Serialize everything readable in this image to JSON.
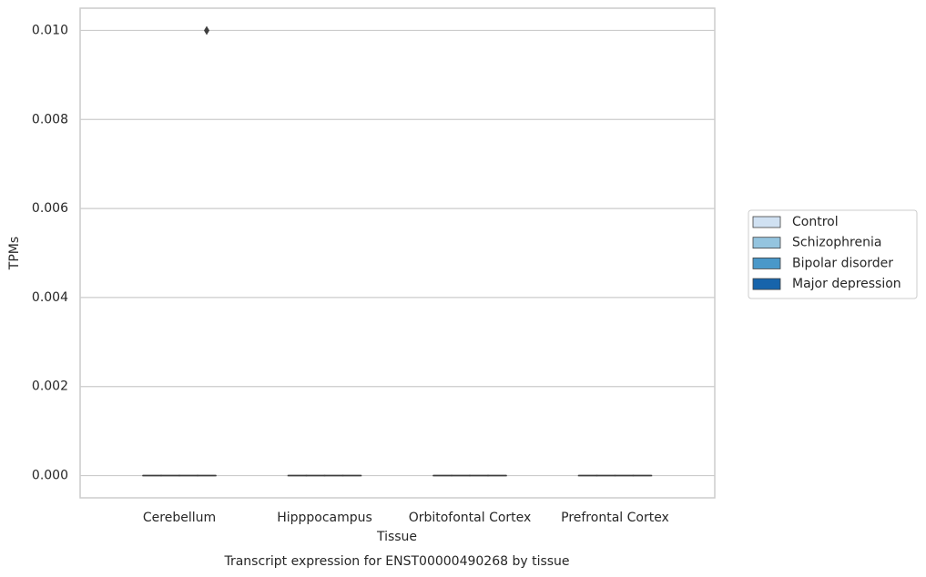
{
  "chart_data": {
    "type": "box",
    "title": "Transcript expression for ENST00000490268 by tissue",
    "x_label": "Tissue",
    "y_label": "TPMs",
    "categories": [
      "Cerebellum",
      "Hipppocampus",
      "Orbitofontal Cortex",
      "Prefrontal Cortex"
    ],
    "ylim": [
      -0.0005,
      0.0105
    ],
    "yticks": [
      {
        "value": 0,
        "label": "0.000"
      },
      {
        "value": 0.002,
        "label": "0.002"
      },
      {
        "value": 0.004,
        "label": "0.004"
      },
      {
        "value": 0.006,
        "label": "0.006"
      },
      {
        "value": 0.008,
        "label": "0.008"
      },
      {
        "value": 0.01,
        "label": "0.010"
      }
    ],
    "grid": true,
    "legend": "right",
    "series": [
      {
        "name": "Control",
        "color": "#d0e1f2",
        "whislo": [
          0,
          0,
          0,
          0
        ],
        "q1": [
          0,
          0,
          0,
          0
        ],
        "median": [
          0,
          0,
          0,
          0
        ],
        "q3": [
          0,
          0,
          0,
          0
        ],
        "whishi": [
          0,
          0,
          0,
          0
        ],
        "outliers": [
          [],
          [],
          [],
          []
        ]
      },
      {
        "name": "Schizophrenia",
        "color": "#94c4df",
        "whislo": [
          0,
          0,
          0,
          0
        ],
        "q1": [
          0,
          0,
          0,
          0
        ],
        "median": [
          0,
          0,
          0,
          0
        ],
        "q3": [
          0,
          0,
          0,
          0
        ],
        "whishi": [
          0,
          0,
          0,
          0
        ],
        "outliers": [
          [],
          [],
          [],
          []
        ]
      },
      {
        "name": "Bipolar disorder",
        "color": "#4a98c9",
        "whislo": [
          0,
          0,
          0,
          0
        ],
        "q1": [
          0,
          0,
          0,
          0
        ],
        "median": [
          0,
          0,
          0,
          0
        ],
        "q3": [
          0,
          0,
          0,
          0
        ],
        "whishi": [
          0,
          0,
          0,
          0
        ],
        "outliers": [
          [],
          [],
          [],
          []
        ]
      },
      {
        "name": "Major depression",
        "color": "#1764ab",
        "whislo": [
          0,
          0,
          0,
          0
        ],
        "q1": [
          0,
          0,
          0,
          0
        ],
        "median": [
          0,
          0,
          0,
          0
        ],
        "q3": [
          0,
          0,
          0,
          0
        ],
        "whishi": [
          0,
          0,
          0,
          0
        ],
        "outliers": [
          [
            0.01
          ],
          [],
          [],
          []
        ]
      }
    ]
  }
}
